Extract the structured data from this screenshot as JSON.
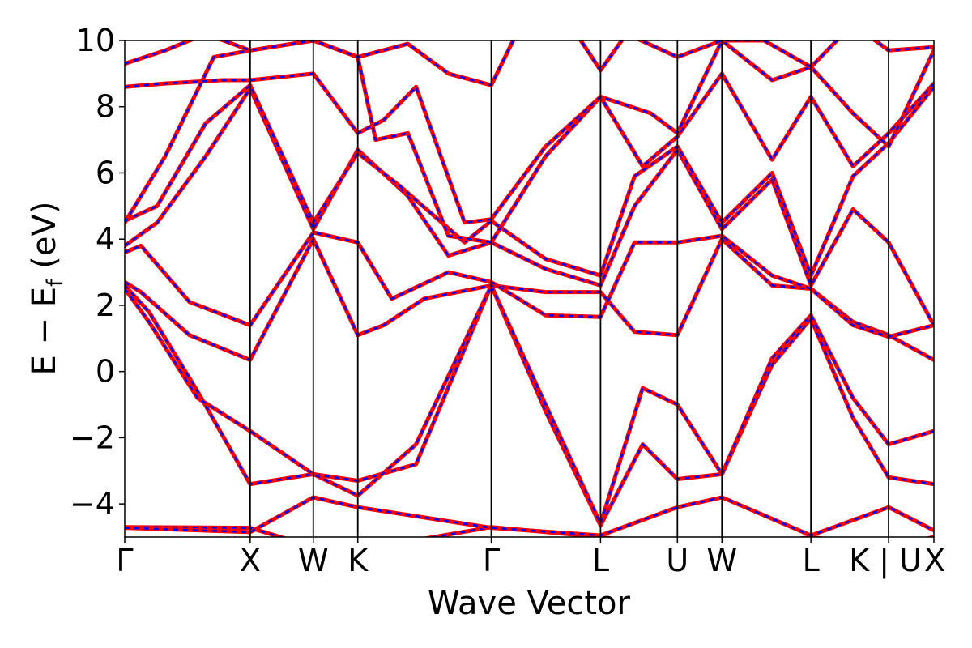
{
  "chart_data": {
    "type": "line",
    "title": "",
    "xlabel": "Wave Vector",
    "ylabel_main": "E − E",
    "ylabel_sub": "f",
    "ylabel_unit": " (eV)",
    "ylim": [
      -5,
      10
    ],
    "xlim": [
      0,
      1
    ],
    "yticks": [
      {
        "value": -4,
        "label": "−4"
      },
      {
        "value": -2,
        "label": "−2"
      },
      {
        "value": 0,
        "label": "0"
      },
      {
        "value": 2,
        "label": "2"
      },
      {
        "value": 4,
        "label": "4"
      },
      {
        "value": 6,
        "label": "6"
      },
      {
        "value": 8,
        "label": "8"
      },
      {
        "value": 10,
        "label": "10"
      }
    ],
    "kpoints": [
      {
        "label": "Γ",
        "pos": 0.0
      },
      {
        "label": "X",
        "pos": 0.155
      },
      {
        "label": "W",
        "pos": 0.233
      },
      {
        "label": "K",
        "pos": 0.288
      },
      {
        "label": "Γ",
        "pos": 0.453
      },
      {
        "label": "L",
        "pos": 0.588
      },
      {
        "label": "U",
        "pos": 0.683
      },
      {
        "label": "W",
        "pos": 0.738
      },
      {
        "label": "L",
        "pos": 0.848
      },
      {
        "label": "K | U",
        "pos": 0.944
      },
      {
        "label": "X",
        "pos": 1.0
      }
    ],
    "series_styles": [
      {
        "name": "band-structure-1",
        "color": "#ff0000",
        "style": "solid",
        "width": 5
      },
      {
        "name": "band-structure-2",
        "color": "#0000ff",
        "style": "dashed",
        "width": 2.5
      }
    ],
    "bands": [
      {
        "x": [
          0,
          0.155,
          0.233,
          0.288,
          0.453,
          0.588,
          0.683,
          0.738,
          0.848,
          0.944,
          1.0
        ],
        "y": [
          -4.7,
          -4.72,
          -5.3,
          -5.4,
          -4.7,
          -5.0,
          -5.3,
          -5.4,
          -5.0,
          -5.3,
          -5.0
        ]
      },
      {
        "x": [
          0,
          0.155,
          0.233,
          0.288,
          0.453,
          0.588,
          0.683,
          0.738,
          0.848,
          0.944,
          1.0
        ],
        "y": [
          -4.72,
          -4.85,
          -3.8,
          -4.1,
          -4.72,
          -4.95,
          -4.1,
          -3.8,
          -4.95,
          -4.1,
          -4.8
        ]
      },
      {
        "x": [
          0,
          0.03,
          0.09,
          0.155,
          0.233,
          0.288,
          0.36,
          0.453,
          0.52,
          0.588,
          0.64,
          0.683,
          0.738,
          0.8,
          0.848,
          0.9,
          0.944,
          1.0
        ],
        "y": [
          2.6,
          1.8,
          -0.6,
          -3.4,
          -3.1,
          -3.3,
          -2.8,
          2.6,
          -1.2,
          -4.65,
          -2.2,
          -3.25,
          -3.1,
          0.2,
          1.6,
          -1.4,
          -3.2,
          -3.4
        ]
      },
      {
        "x": [
          0,
          0.03,
          0.09,
          0.155,
          0.233,
          0.288,
          0.36,
          0.453,
          0.52,
          0.588,
          0.64,
          0.683,
          0.738,
          0.8,
          0.848,
          0.9,
          0.944,
          1.0
        ],
        "y": [
          2.5,
          1.5,
          -0.8,
          -1.8,
          -3.1,
          -3.75,
          -2.2,
          2.6,
          -1.0,
          -4.6,
          -0.5,
          -1.0,
          -3.1,
          0.4,
          1.7,
          -0.8,
          -2.2,
          -1.8
        ]
      },
      {
        "x": [
          0,
          0.02,
          0.08,
          0.155,
          0.233,
          0.288,
          0.32,
          0.37,
          0.453,
          0.52,
          0.588,
          0.63,
          0.683,
          0.738,
          0.8,
          0.848,
          0.9,
          0.944,
          1.0
        ],
        "y": [
          2.7,
          2.4,
          1.1,
          0.35,
          4.0,
          1.1,
          1.4,
          2.2,
          2.6,
          2.4,
          2.4,
          1.2,
          1.1,
          4.0,
          2.6,
          2.5,
          1.5,
          1.1,
          0.35
        ]
      },
      {
        "x": [
          0,
          0.02,
          0.08,
          0.155,
          0.233,
          0.288,
          0.33,
          0.4,
          0.453,
          0.52,
          0.588,
          0.63,
          0.683,
          0.738,
          0.8,
          0.848,
          0.9,
          0.944,
          1.0
        ],
        "y": [
          3.6,
          3.8,
          2.1,
          1.4,
          4.2,
          3.9,
          2.2,
          3.0,
          2.7,
          1.7,
          1.65,
          3.9,
          3.9,
          4.1,
          2.9,
          2.5,
          1.4,
          1.05,
          1.4
        ]
      },
      {
        "x": [
          0,
          0.04,
          0.1,
          0.155,
          0.233,
          0.288,
          0.35,
          0.4,
          0.453,
          0.52,
          0.588,
          0.63,
          0.683,
          0.738,
          0.8,
          0.848,
          0.9,
          0.944,
          1.0
        ],
        "y": [
          3.8,
          4.5,
          6.5,
          8.55,
          4.3,
          6.7,
          5.3,
          3.5,
          3.9,
          3.1,
          2.6,
          5.0,
          6.7,
          4.3,
          5.8,
          2.6,
          4.9,
          3.9,
          1.4
        ]
      },
      {
        "x": [
          0,
          0.04,
          0.1,
          0.155,
          0.233,
          0.288,
          0.34,
          0.42,
          0.453,
          0.52,
          0.588,
          0.63,
          0.683,
          0.738,
          0.8,
          0.848,
          0.9,
          0.944,
          1.0
        ],
        "y": [
          4.55,
          5.0,
          7.5,
          8.65,
          4.5,
          6.6,
          5.6,
          3.9,
          4.55,
          3.4,
          2.9,
          5.9,
          6.8,
          4.5,
          6.0,
          2.9,
          5.9,
          6.9,
          8.6
        ]
      },
      {
        "x": [
          0,
          0.05,
          0.11,
          0.155,
          0.233,
          0.288,
          0.31,
          0.35,
          0.4,
          0.453,
          0.52,
          0.588,
          0.64,
          0.683,
          0.738,
          0.8,
          0.848,
          0.9,
          0.944,
          1.0
        ],
        "y": [
          4.5,
          6.5,
          9.5,
          9.7,
          10.0,
          9.5,
          7.0,
          7.2,
          4.1,
          3.9,
          6.5,
          8.3,
          6.2,
          7.1,
          9.0,
          6.4,
          8.3,
          6.2,
          7.2,
          8.7
        ]
      },
      {
        "x": [
          0,
          0.05,
          0.12,
          0.155,
          0.233,
          0.288,
          0.32,
          0.36,
          0.42,
          0.453,
          0.52,
          0.588,
          0.65,
          0.683,
          0.738,
          0.8,
          0.848,
          0.9,
          0.944,
          1.0
        ],
        "y": [
          8.6,
          8.7,
          8.8,
          8.8,
          9.0,
          7.2,
          7.6,
          8.6,
          4.5,
          4.6,
          6.8,
          8.3,
          7.8,
          7.2,
          10.0,
          8.8,
          9.2,
          7.8,
          6.8,
          9.7
        ]
      },
      {
        "x": [
          0,
          0.05,
          0.1,
          0.155,
          0.233,
          0.288,
          0.35,
          0.4,
          0.453,
          0.5,
          0.55,
          0.588,
          0.62,
          0.683,
          0.738,
          0.79,
          0.848,
          0.9,
          0.944,
          1.0
        ],
        "y": [
          9.3,
          9.7,
          10.2,
          9.7,
          10.0,
          9.5,
          9.9,
          9.0,
          8.65,
          11.0,
          10.5,
          9.1,
          10.2,
          9.5,
          10.0,
          10.0,
          9.2,
          10.5,
          9.7,
          9.8
        ]
      }
    ]
  }
}
